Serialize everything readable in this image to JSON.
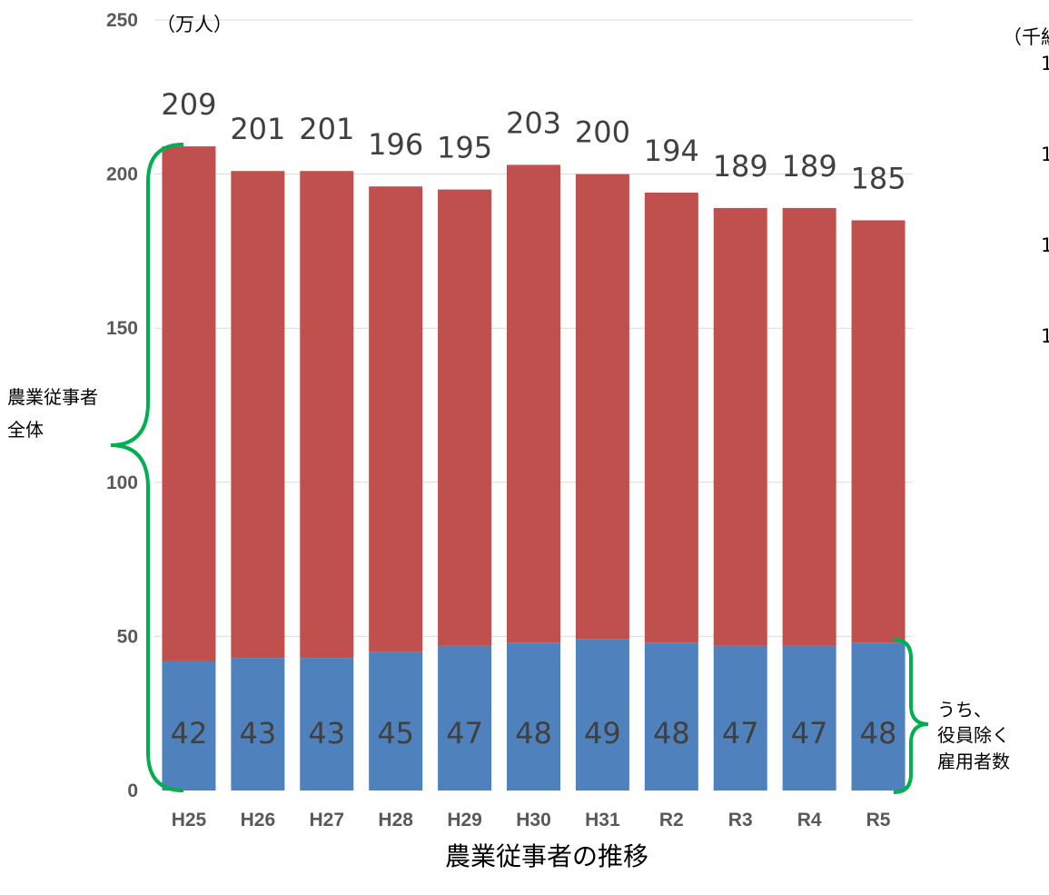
{
  "chart_data": {
    "type": "bar",
    "stacked": true,
    "categories": [
      "H25",
      "H26",
      "H27",
      "H28",
      "H29",
      "H30",
      "H31",
      "R2",
      "R3",
      "R4",
      "R5"
    ],
    "series": [
      {
        "values": [
          42,
          43,
          43,
          45,
          47,
          48,
          49,
          48,
          47,
          47,
          48
        ],
        "color": "#4f81bd"
      },
      {
        "values": [
          167,
          158,
          158,
          151,
          148,
          155,
          151,
          146,
          142,
          142,
          137
        ],
        "color": "#c0504d"
      }
    ],
    "totals": [
      209,
      201,
      201,
      196,
      195,
      203,
      200,
      194,
      189,
      189,
      185
    ],
    "ylim": [
      0,
      250
    ],
    "yticks": [
      "0",
      "50",
      "100",
      "150",
      "200",
      "250"
    ],
    "ylabel": "（万人）",
    "grid": true,
    "legend": "none"
  },
  "annotations": {
    "brace_total_label": [
      "農業従事者",
      "全体"
    ],
    "brace_employed_label": [
      "うち、",
      "役員除く",
      "雇用者数"
    ],
    "caption": "農業従事者の推移"
  },
  "right_partial_axis": {
    "unit_label": "（千組",
    "ticks": [
      "1",
      "1",
      "1",
      "1"
    ]
  },
  "colors": {
    "brace": "#00b050",
    "grid": "#d9d9d9"
  }
}
